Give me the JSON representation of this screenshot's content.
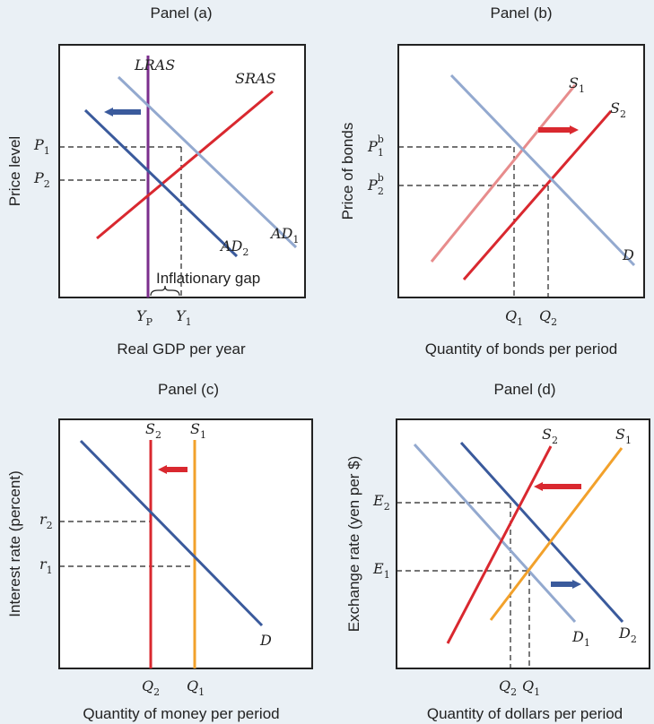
{
  "panels": {
    "a": {
      "title": "Panel (a)",
      "xlabel": "Real GDP per year",
      "ylabel": "Price level",
      "curves": {
        "lras": "LRAS",
        "sras": "SRAS",
        "ad1": "AD",
        "ad1_sub": "1",
        "ad2": "AD",
        "ad2_sub": "2"
      },
      "yticks": [
        {
          "main": "P",
          "sub": "1"
        },
        {
          "main": "P",
          "sub": "2"
        }
      ],
      "xticks": [
        {
          "main": "Y",
          "sub": "P"
        },
        {
          "main": "Y",
          "sub": "1"
        }
      ],
      "annotation": "Inflationary gap",
      "shift_arrow": "left"
    },
    "b": {
      "title": "Panel (b)",
      "xlabel": "Quantity of bonds per period",
      "ylabel": "Price of bonds",
      "curves": {
        "s1": "S",
        "s1_sub": "1",
        "s2": "S",
        "s2_sub": "2",
        "d": "D"
      },
      "yticks": [
        {
          "main": "P",
          "sup": "b",
          "sub": "1"
        },
        {
          "main": "P",
          "sup": "b",
          "sub": "2"
        }
      ],
      "xticks": [
        {
          "main": "Q",
          "sub": "1"
        },
        {
          "main": "Q",
          "sub": "2"
        }
      ],
      "shift_arrow": "right"
    },
    "c": {
      "title": "Panel (c)",
      "xlabel": "Quantity of money per period",
      "ylabel": "Interest rate (percent)",
      "curves": {
        "s2": "S",
        "s2_sub": "2",
        "s1": "S",
        "s1_sub": "1",
        "d": "D"
      },
      "yticks": [
        {
          "main": "r",
          "sub": "2"
        },
        {
          "main": "r",
          "sub": "1"
        }
      ],
      "xticks": [
        {
          "main": "Q",
          "sub": "2"
        },
        {
          "main": "Q",
          "sub": "1"
        }
      ],
      "shift_arrow": "left"
    },
    "d": {
      "title": "Panel (d)",
      "xlabel": "Quantity of dollars per period",
      "ylabel": "Exchange rate (yen per $)",
      "curves": {
        "s2": "S",
        "s2_sub": "2",
        "s1": "S",
        "s1_sub": "1",
        "d1": "D",
        "d1_sub": "1",
        "d2": "D",
        "d2_sub": "2"
      },
      "yticks": [
        {
          "main": "E",
          "sub": "2"
        },
        {
          "main": "E",
          "sub": "1"
        }
      ],
      "xticks": [
        {
          "main": "Q",
          "sub": "2"
        },
        {
          "main": "Q",
          "sub": "1"
        }
      ],
      "shift_arrows": [
        "left",
        "right"
      ]
    }
  },
  "colors": {
    "dark_blue": "#3a5a9c",
    "light_blue": "#93a9cf",
    "red": "#d9282f",
    "light_red": "#e78c8c",
    "orange": "#f2a12b",
    "purple": "#7b2e8d",
    "background": "#eaf0f5"
  }
}
